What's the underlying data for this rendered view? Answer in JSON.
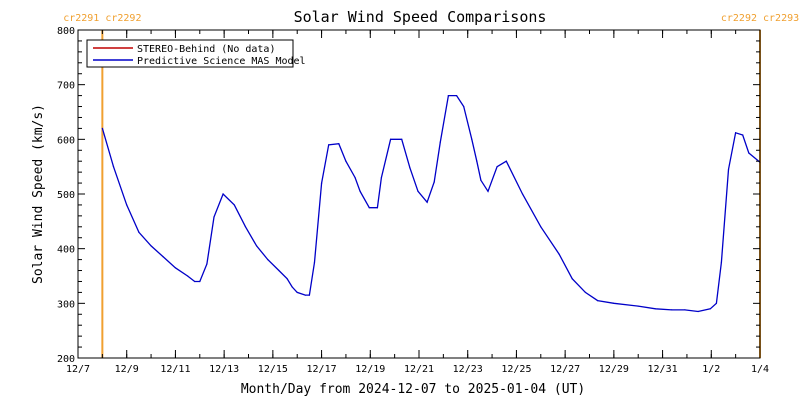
{
  "chart_data": {
    "type": "line",
    "title": "Solar Wind Speed Comparisons",
    "xlabel": "Month/Day from 2024-12-07 to 2025-01-04 (UT)",
    "ylabel": "Solar Wind Speed (km/s)",
    "ylim": [
      200,
      800
    ],
    "xlim": [
      "2024-12-07",
      "2025-01-04"
    ],
    "y_ticks": [
      200,
      300,
      400,
      500,
      600,
      700,
      800
    ],
    "y_tick_labels": [
      "200",
      "300",
      "400",
      "500",
      "600",
      "700",
      "800"
    ],
    "x_ticks": [
      "2024-12-07",
      "2024-12-09",
      "2024-12-11",
      "2024-12-13",
      "2024-12-15",
      "2024-12-17",
      "2024-12-19",
      "2024-12-21",
      "2024-12-23",
      "2024-12-25",
      "2024-12-27",
      "2024-12-29",
      "2024-12-31",
      "2025-01-02",
      "2025-01-04"
    ],
    "x_tick_labels": [
      "12/7",
      "12/9",
      "12/11",
      "12/13",
      "12/15",
      "12/17",
      "12/19",
      "12/21",
      "12/23",
      "12/25",
      "12/27",
      "12/29",
      "12/31",
      "1/2",
      "1/4"
    ],
    "legend": [
      {
        "label": "STEREO-Behind (No data)",
        "color": "#c00000"
      },
      {
        "label": "Predictive Science MAS Model",
        "color": "#0000c8"
      }
    ],
    "legend_placement": "top-left",
    "carrington_markers": [
      {
        "date": "2024-12-08T00:00",
        "label": "cr2291 cr2292",
        "color": "#f0a030"
      },
      {
        "date": "2025-01-04T00:00",
        "label": "cr2292 cr2293",
        "color": "#f0a030"
      }
    ],
    "series": [
      {
        "name": "Predictive Science MAS Model",
        "color": "#0000c8",
        "x": [
          "2024-12-08T00:00",
          "2024-12-08T11:00",
          "2024-12-09T00:00",
          "2024-12-09T12:00",
          "2024-12-10T00:00",
          "2024-12-10T12:00",
          "2024-12-11T00:00",
          "2024-12-11T12:00",
          "2024-12-11T19:00",
          "2024-12-12T00:00",
          "2024-12-12T07:00",
          "2024-12-12T14:00",
          "2024-12-12T23:00",
          "2024-12-13T10:00",
          "2024-12-13T21:00",
          "2024-12-14T08:00",
          "2024-12-14T19:00",
          "2024-12-15T06:00",
          "2024-12-15T14:00",
          "2024-12-15T19:00",
          "2024-12-16T00:00",
          "2024-12-16T08:00",
          "2024-12-16T12:00",
          "2024-12-16T17:00",
          "2024-12-17T00:00",
          "2024-12-17T07:00",
          "2024-12-17T17:00",
          "2024-12-18T00:00",
          "2024-12-18T09:00",
          "2024-12-18T14:00",
          "2024-12-18T23:00",
          "2024-12-19T07:00",
          "2024-12-19T11:00",
          "2024-12-19T20:00",
          "2024-12-20T07:00",
          "2024-12-20T15:00",
          "2024-12-20T23:00",
          "2024-12-21T08:00",
          "2024-12-21T15:00",
          "2024-12-21T21:00",
          "2024-12-22T05:00",
          "2024-12-22T13:00",
          "2024-12-22T20:00",
          "2024-12-23T04:00",
          "2024-12-23T09:00",
          "2024-12-23T13:00",
          "2024-12-23T20:00",
          "2024-12-24T05:00",
          "2024-12-24T14:00",
          "2024-12-25T06:00",
          "2024-12-26T00:00",
          "2024-12-26T18:00",
          "2024-12-27T07:00",
          "2024-12-27T20:00",
          "2024-12-28T08:00",
          "2024-12-29T00:00",
          "2024-12-30T00:00",
          "2024-12-30T17:00",
          "2024-12-31T09:00",
          "2024-12-31T22:00",
          "2025-01-01T11:00",
          "2025-01-01T23:00",
          "2025-01-02T05:00",
          "2025-01-02T10:00",
          "2025-01-02T17:00",
          "2025-01-03T00:00",
          "2025-01-03T07:00",
          "2025-01-03T13:00",
          "2025-01-04T00:00"
        ],
        "values": [
          620,
          550,
          480,
          430,
          405,
          385,
          365,
          350,
          340,
          340,
          372,
          458,
          500,
          480,
          440,
          405,
          380,
          360,
          345,
          330,
          320,
          315,
          315,
          375,
          520,
          590,
          592,
          560,
          530,
          505,
          475,
          475,
          530,
          600,
          600,
          548,
          505,
          485,
          522,
          595,
          680,
          680,
          660,
          600,
          560,
          525,
          505,
          550,
          560,
          500,
          440,
          390,
          345,
          320,
          305,
          300,
          295,
          290,
          288,
          288,
          285,
          290,
          300,
          375,
          545,
          612,
          608,
          575,
          558
        ]
      }
    ]
  }
}
